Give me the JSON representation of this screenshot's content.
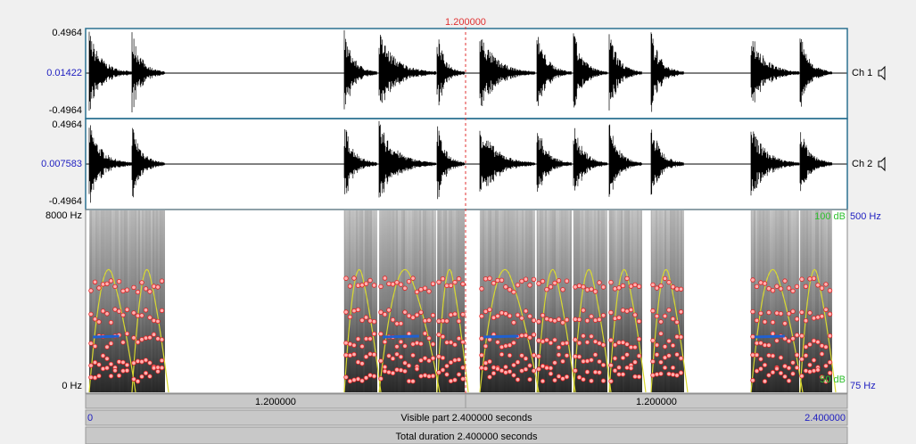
{
  "cursor": {
    "time": "1.200000"
  },
  "channels": [
    {
      "max": "0.4964",
      "mid": "0.01422",
      "min": "-0.4964",
      "label": "Ch 1"
    },
    {
      "max": "0.4964",
      "mid": "0.007583",
      "min": "-0.4964",
      "label": "Ch 2"
    }
  ],
  "spectrogram": {
    "max_freq": "8000 Hz",
    "min_freq": "0 Hz",
    "intensity_max": "100 dB",
    "intensity_min": "50 dB",
    "pitch_max": "500 Hz",
    "pitch_min": "75 Hz"
  },
  "time_bar": {
    "left": "1.200000",
    "right": "1.200000"
  },
  "visible": {
    "start": "0",
    "text": "Visible part 2.400000 seconds",
    "end": "2.400000"
  },
  "total": "Total duration 2.400000 seconds"
}
